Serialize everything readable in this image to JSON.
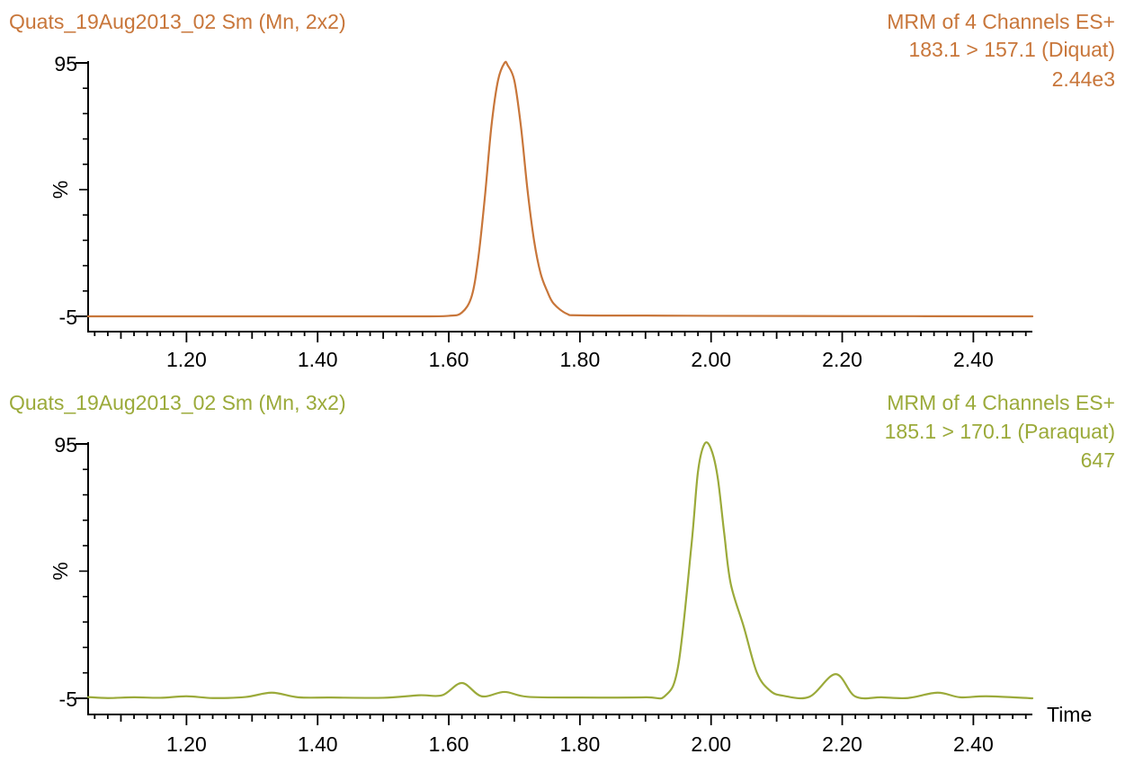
{
  "chart_data": [
    {
      "type": "line",
      "title": "Quats_19Aug2013_02 Sm (Mn, 2x2)",
      "header_right": [
        "MRM of 4 Channels ES+",
        "183.1 > 157.1 (Diquat)",
        "2.44e3"
      ],
      "color": "#C8763A",
      "ylabel": "%",
      "xlabel": "",
      "xlim": [
        1.05,
        2.49
      ],
      "ylim": [
        -5,
        95
      ],
      "x_ticks": [
        "1.20",
        "1.40",
        "1.60",
        "1.80",
        "2.00",
        "2.20",
        "2.40"
      ],
      "y_ticks": [
        "95",
        "-5"
      ],
      "series": [
        {
          "x": [
            1.05,
            1.2,
            1.4,
            1.55,
            1.6,
            1.62,
            1.635,
            1.645,
            1.655,
            1.665,
            1.675,
            1.685,
            1.69,
            1.7,
            1.71,
            1.72,
            1.73,
            1.74,
            1.75,
            1.76,
            1.78,
            1.8,
            1.9,
            2.0,
            2.2,
            2.49
          ],
          "y": [
            -5,
            -5,
            -5,
            -5,
            -4.8,
            -3.5,
            3,
            18,
            42,
            70,
            88,
            95,
            94,
            88,
            70,
            45,
            25,
            12,
            5,
            0,
            -4,
            -4.6,
            -4.7,
            -4.8,
            -4.9,
            -5
          ]
        }
      ]
    },
    {
      "type": "line",
      "title": "Quats_19Aug2013_02 Sm (Mn, 3x2)",
      "header_right": [
        "MRM of 4 Channels ES+",
        "185.1 > 170.1 (Paraquat)",
        "647"
      ],
      "color": "#9BAA3A",
      "ylabel": "%",
      "xlabel": "Time",
      "xlim": [
        1.05,
        2.49
      ],
      "ylim": [
        -5,
        95
      ],
      "x_ticks": [
        "1.20",
        "1.40",
        "1.60",
        "1.80",
        "2.00",
        "2.20",
        "2.40"
      ],
      "y_ticks": [
        "95",
        "-5"
      ],
      "series": [
        {
          "x": [
            1.05,
            1.08,
            1.12,
            1.16,
            1.2,
            1.24,
            1.29,
            1.33,
            1.37,
            1.42,
            1.5,
            1.555,
            1.59,
            1.62,
            1.65,
            1.685,
            1.72,
            1.8,
            1.9,
            1.93,
            1.95,
            1.97,
            1.98,
            1.99,
            2.0,
            2.01,
            2.02,
            2.03,
            2.05,
            2.07,
            2.09,
            2.11,
            2.15,
            2.19,
            2.22,
            2.26,
            2.3,
            2.345,
            2.38,
            2.42,
            2.49
          ],
          "y": [
            -4.5,
            -4.9,
            -4.6,
            -4.8,
            -4.2,
            -4.9,
            -4.5,
            -2.8,
            -4.6,
            -4.7,
            -4.8,
            -3.8,
            -3.8,
            1,
            -4.2,
            -2.5,
            -4.4,
            -4.7,
            -4.6,
            -4,
            8,
            55,
            84,
            95,
            93,
            82,
            60,
            40,
            23,
            5,
            -2,
            -4,
            -4.4,
            4.5,
            -4.3,
            -4.6,
            -4.9,
            -2.8,
            -4.6,
            -4.2,
            -5
          ]
        }
      ]
    }
  ]
}
